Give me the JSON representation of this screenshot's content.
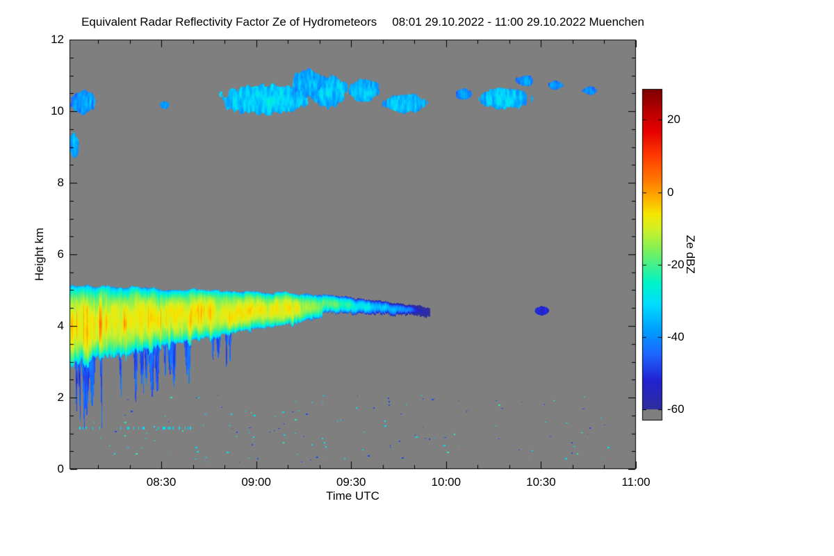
{
  "chart_data": {
    "type": "heatmap",
    "title": "Equivalent Radar Reflectivity Factor Ze of Hydrometeors",
    "date_range": "08:01 29.10.2022 - 11:00 29.10.2022 Muenchen",
    "station": "Muenchen",
    "time_start": "08:01 29.10.2022",
    "time_end": "11:00 29.10.2022",
    "xlabel": "Time UTC",
    "ylabel": "Height km",
    "x_range_minutes": [
      0,
      179
    ],
    "x_clock_start_minute": 481,
    "x_minor_every_m": 10,
    "x_ticks": [
      {
        "label": "08:30",
        "m": 29
      },
      {
        "label": "09:00",
        "m": 59
      },
      {
        "label": "09:30",
        "m": 89
      },
      {
        "label": "10:00",
        "m": 119
      },
      {
        "label": "10:30",
        "m": 149
      },
      {
        "label": "11:00",
        "m": 179
      }
    ],
    "ylim": [
      0,
      12
    ],
    "y_ticks": [
      0,
      2,
      4,
      6,
      8,
      10,
      12
    ],
    "y_minor_step": 0.5,
    "colorbar": {
      "label": "Ze dBZ",
      "ticks": [
        20,
        0,
        -20,
        -40,
        -60
      ],
      "vmax": 28.5,
      "vmin": -63,
      "nodata_below": -60
    },
    "nodata_color": "#7f7f7f",
    "colormap": [
      [
        -60,
        "#2e2e9e"
      ],
      [
        -52,
        "#2222d2"
      ],
      [
        -45,
        "#1e64ff"
      ],
      [
        -38,
        "#00a0ff"
      ],
      [
        -31,
        "#00ddff"
      ],
      [
        -25,
        "#00f5c8"
      ],
      [
        -20,
        "#46f08c"
      ],
      [
        -15,
        "#8cf050"
      ],
      [
        -10,
        "#d2f028"
      ],
      [
        -6,
        "#f5e600"
      ],
      [
        -2,
        "#ffb400"
      ],
      [
        3,
        "#ff7d00"
      ],
      [
        10,
        "#ff3c00"
      ],
      [
        17,
        "#e60000"
      ],
      [
        23,
        "#b40000"
      ],
      [
        28.5,
        "#7d0000"
      ]
    ],
    "features": {
      "main_cloud": {
        "t_range": [
          0,
          114
        ],
        "top_km_start": 5.12,
        "top_km_end": 4.5,
        "base_km_start": 3.0,
        "base_km_at_t80": 4.25,
        "core_dbz": -7,
        "edge_dbz": -40,
        "orange_streaks_until_m": 52,
        "weaken_after_m": 70
      },
      "virga": {
        "t_range": [
          1,
          52
        ],
        "count": 26,
        "bottom_km_min": 1.1,
        "bottom_km_max": 3.2,
        "dbz": -46
      },
      "dotted_drizzle_line": {
        "h_km": 1.14,
        "t_range": [
          1,
          40
        ],
        "dbz": -31
      },
      "cirrus_patches": [
        {
          "t": [
            0,
            9
          ],
          "h": [
            9.9,
            10.6
          ],
          "v": -37
        },
        {
          "t": [
            0,
            3
          ],
          "h": [
            8.7,
            9.4
          ],
          "v": -36
        },
        {
          "t": [
            28.5,
            31.5
          ],
          "h": [
            10.05,
            10.3
          ],
          "v": -38
        },
        {
          "t": [
            47,
            76
          ],
          "h": [
            9.9,
            10.75
          ],
          "v": -31
        },
        {
          "t": [
            70,
            80
          ],
          "h": [
            10.4,
            11.2
          ],
          "v": -35
        },
        {
          "t": [
            76,
            88
          ],
          "h": [
            10.1,
            11.0
          ],
          "v": -33
        },
        {
          "t": [
            88,
            98
          ],
          "h": [
            10.25,
            10.9
          ],
          "v": -34
        },
        {
          "t": [
            99,
            113
          ],
          "h": [
            9.95,
            10.5
          ],
          "v": -33
        },
        {
          "t": [
            122,
            127
          ],
          "h": [
            10.3,
            10.65
          ],
          "v": -38
        },
        {
          "t": [
            129,
            146
          ],
          "h": [
            10.05,
            10.65
          ],
          "v": -33
        },
        {
          "t": [
            141,
            147
          ],
          "h": [
            10.7,
            11.0
          ],
          "v": -39
        },
        {
          "t": [
            151,
            156
          ],
          "h": [
            10.6,
            10.85
          ],
          "v": -40
        },
        {
          "t": [
            162,
            167
          ],
          "h": [
            10.45,
            10.7
          ],
          "v": -40
        }
      ],
      "mid_blob": {
        "t": [
          147,
          151.5
        ],
        "h": [
          4.3,
          4.55
        ],
        "v": -52
      },
      "low_specks": {
        "count": 150,
        "t_range": [
          5,
          172
        ],
        "h_range": [
          0.2,
          2.1
        ],
        "dbz_choices": [
          -30,
          -48,
          -22
        ]
      }
    }
  }
}
